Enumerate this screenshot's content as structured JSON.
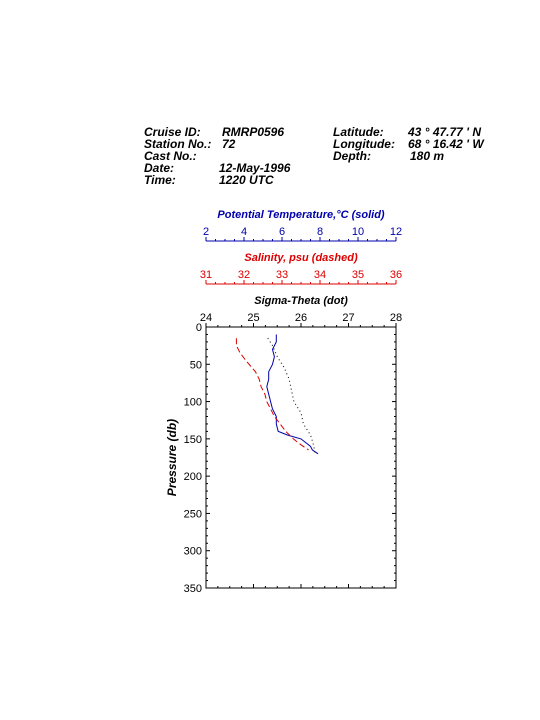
{
  "header": {
    "cruise_id_label": "Cruise ID:",
    "cruise_id": "RMRP0596",
    "station_label": "Station No.:",
    "station": "72",
    "cast_label": "Cast No.:",
    "cast": "",
    "date_label": "Date:",
    "date": "12-May-1996",
    "time_label": "Time:",
    "time": "1220 UTC",
    "latitude_label": "Latitude:",
    "latitude": "43 ° 47.77 ' N",
    "longitude_label": "Longitude:",
    "longitude": "68 ° 16.42 ' W",
    "depth_label": "Depth:",
    "depth": "180 m"
  },
  "colors": {
    "temperature": "#0000aa",
    "salinity": "#dd0000",
    "sigma": "#000000"
  },
  "chart_data": {
    "type": "line",
    "ylabel": "Pressure (db)",
    "ylim": [
      0,
      350
    ],
    "y_reversed": true,
    "yticks": [
      "0",
      "50",
      "100",
      "150",
      "200",
      "250",
      "300",
      "350"
    ],
    "axes": [
      {
        "name": "Potential Temperature,°C (solid)",
        "color": "#0000aa",
        "xlim": [
          2,
          12
        ],
        "ticks": [
          "2",
          "4",
          "6",
          "8",
          "10",
          "12"
        ]
      },
      {
        "name": "Salinity, psu  (dashed)",
        "color": "#dd0000",
        "xlim": [
          31,
          36
        ],
        "ticks": [
          "31",
          "32",
          "33",
          "34",
          "35",
          "36"
        ]
      },
      {
        "name": "Sigma-Theta (dot)",
        "color": "#000000",
        "xlim": [
          24,
          28
        ],
        "ticks": [
          "24",
          "25",
          "26",
          "27",
          "28"
        ]
      }
    ],
    "series": [
      {
        "style": "solid",
        "axis": 0,
        "points": [
          [
            5.7,
            10
          ],
          [
            5.7,
            20
          ],
          [
            5.5,
            30
          ],
          [
            5.6,
            40
          ],
          [
            5.5,
            50
          ],
          [
            5.3,
            60
          ],
          [
            5.3,
            70
          ],
          [
            5.2,
            80
          ],
          [
            5.3,
            90
          ],
          [
            5.4,
            100
          ],
          [
            5.5,
            110
          ],
          [
            5.7,
            120
          ],
          [
            5.7,
            130
          ],
          [
            5.8,
            140
          ],
          [
            6.3,
            145
          ],
          [
            7.0,
            150
          ],
          [
            7.5,
            160
          ],
          [
            7.6,
            165
          ],
          [
            7.9,
            170
          ]
        ]
      },
      {
        "style": "dashed",
        "axis": 1,
        "points": [
          [
            31.8,
            15
          ],
          [
            31.8,
            25
          ],
          [
            31.9,
            35
          ],
          [
            32.05,
            45
          ],
          [
            32.3,
            60
          ],
          [
            32.4,
            70
          ],
          [
            32.45,
            80
          ],
          [
            32.55,
            90
          ],
          [
            32.6,
            100
          ],
          [
            32.7,
            110
          ],
          [
            32.8,
            120
          ],
          [
            32.95,
            130
          ],
          [
            33.1,
            140
          ],
          [
            33.3,
            150
          ],
          [
            33.5,
            158
          ],
          [
            33.7,
            165
          ]
        ]
      },
      {
        "style": "dotted",
        "axis": 2,
        "points": [
          [
            25.3,
            15
          ],
          [
            25.4,
            25
          ],
          [
            25.5,
            40
          ],
          [
            25.65,
            55
          ],
          [
            25.75,
            70
          ],
          [
            25.8,
            85
          ],
          [
            25.85,
            100
          ],
          [
            26.0,
            115
          ],
          [
            26.05,
            130
          ],
          [
            26.2,
            145
          ],
          [
            26.25,
            155
          ],
          [
            26.3,
            170
          ]
        ]
      }
    ]
  }
}
